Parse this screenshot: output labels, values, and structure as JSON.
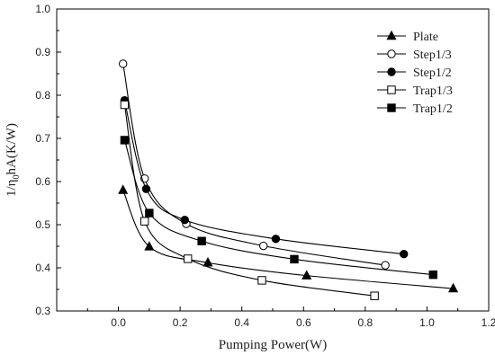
{
  "chart_data": {
    "type": "line",
    "title": "",
    "xlabel": "Pumping Power(W)",
    "ylabel": "1/η₀hA(K/W)",
    "ylabel_main": "1/η",
    "ylabel_sub": "0",
    "ylabel_rest": "hA(K/W)",
    "xlim": [
      -0.2,
      1.2
    ],
    "ylim": [
      0.3,
      1.0
    ],
    "xticks": [
      "0.0",
      "0.2",
      "0.4",
      "0.6",
      "0.8",
      "1.0",
      "1.2"
    ],
    "xtick_values": [
      0.0,
      0.2,
      0.4,
      0.6,
      0.8,
      1.0,
      1.2
    ],
    "yticks": [
      "0.3",
      "0.4",
      "0.5",
      "0.6",
      "0.7",
      "0.8",
      "0.9",
      "1.0"
    ],
    "ytick_values": [
      0.3,
      0.4,
      0.5,
      0.6,
      0.7,
      0.8,
      0.9,
      1.0
    ],
    "grid": false,
    "legend_position": "top-right",
    "series": [
      {
        "name": "Plate",
        "marker": "triangle",
        "x": [
          0.015,
          0.1,
          0.29,
          0.61,
          1.085
        ],
        "y": [
          0.58,
          0.449,
          0.412,
          0.382,
          0.352
        ]
      },
      {
        "name": "Step1/3",
        "marker": "circle-open",
        "x": [
          0.015,
          0.085,
          0.22,
          0.47,
          0.865
        ],
        "y": [
          0.873,
          0.607,
          0.502,
          0.451,
          0.406
        ]
      },
      {
        "name": "Step1/2",
        "marker": "circle-filled",
        "x": [
          0.02,
          0.09,
          0.215,
          0.51,
          0.925
        ],
        "y": [
          0.788,
          0.583,
          0.511,
          0.467,
          0.432
        ]
      },
      {
        "name": "Trap1/3",
        "marker": "square-open",
        "x": [
          0.02,
          0.085,
          0.225,
          0.465,
          0.83
        ],
        "y": [
          0.778,
          0.508,
          0.421,
          0.371,
          0.335
        ]
      },
      {
        "name": "Trap1/2",
        "marker": "square-filled",
        "x": [
          0.02,
          0.1,
          0.27,
          0.57,
          1.02
        ],
        "y": [
          0.696,
          0.527,
          0.462,
          0.42,
          0.384
        ]
      }
    ]
  }
}
